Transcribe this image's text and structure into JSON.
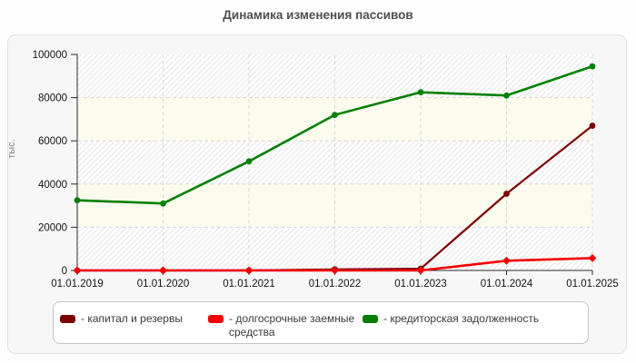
{
  "title": "Динамика изменения пассивов",
  "ylabel": "тыс.",
  "legend_prefix": "-",
  "chart_data": {
    "type": "line",
    "title": "Динамика изменения пассивов",
    "xlabel": "",
    "ylabel": "тыс.",
    "x": [
      "01.01.2019",
      "01.01.2020",
      "01.01.2021",
      "01.01.2022",
      "01.01.2023",
      "01.01.2024",
      "01.01.2025"
    ],
    "ylim": [
      0,
      100000
    ],
    "yticks": [
      0,
      20000,
      40000,
      60000,
      80000,
      100000
    ],
    "grid": true,
    "legend_position": "bottom",
    "series": [
      {
        "name": "капитал и резервы",
        "color": "#7b0000",
        "marker": "circle",
        "values": [
          0,
          0,
          0,
          500,
          800,
          35500,
          67000
        ]
      },
      {
        "name": "долгосрочные заемные средства",
        "color": "#f20000",
        "marker": "diamond",
        "values": [
          0,
          0,
          0,
          0,
          0,
          4500,
          5700
        ]
      },
      {
        "name": "кредиторская задолженность",
        "color": "#028002",
        "marker": "circle",
        "values": [
          32500,
          31000,
          50500,
          72000,
          82500,
          81000,
          94500
        ]
      }
    ]
  }
}
